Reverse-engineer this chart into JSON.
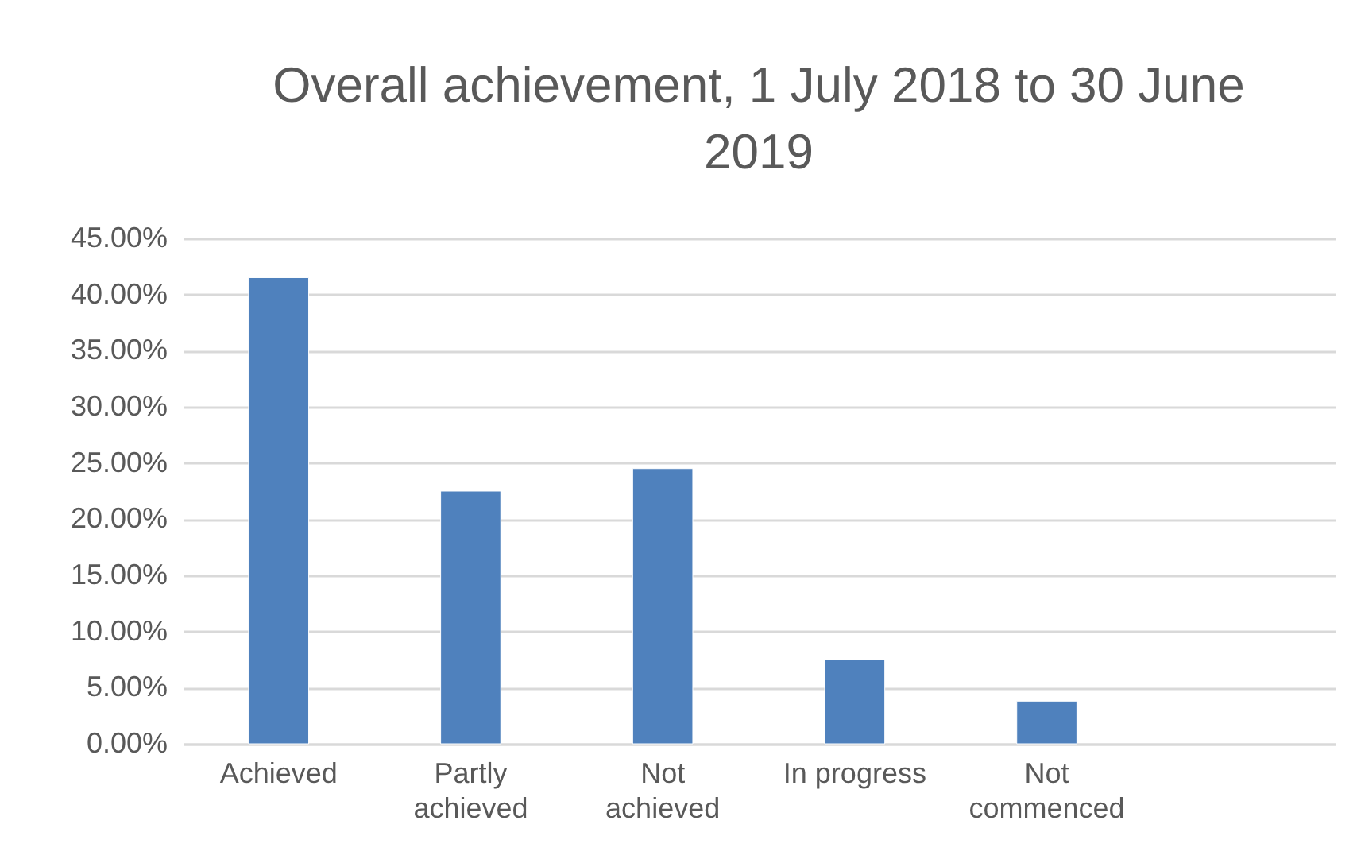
{
  "chart_data": {
    "type": "bar",
    "title": "Overall achievement, 1 July 2018 to 30 June 2019",
    "categories": [
      "Achieved",
      "Partly achieved",
      "Not achieved",
      "In progress",
      "Not commenced",
      null
    ],
    "values": [
      41.5,
      22.5,
      24.5,
      7.5,
      3.8,
      null
    ],
    "color": "#4f81bd",
    "ylim": [
      0,
      45
    ],
    "yticks": [
      {
        "value": 0,
        "label": "0.00%"
      },
      {
        "value": 5,
        "label": "5.00%"
      },
      {
        "value": 10,
        "label": "10.00%"
      },
      {
        "value": 15,
        "label": "15.00%"
      },
      {
        "value": 20,
        "label": "20.00%"
      },
      {
        "value": 25,
        "label": "25.00%"
      },
      {
        "value": 30,
        "label": "30.00%"
      },
      {
        "value": 35,
        "label": "35.00%"
      },
      {
        "value": 40,
        "label": "40.00%"
      },
      {
        "value": 45,
        "label": "45.00%"
      }
    ],
    "grid": "y"
  }
}
